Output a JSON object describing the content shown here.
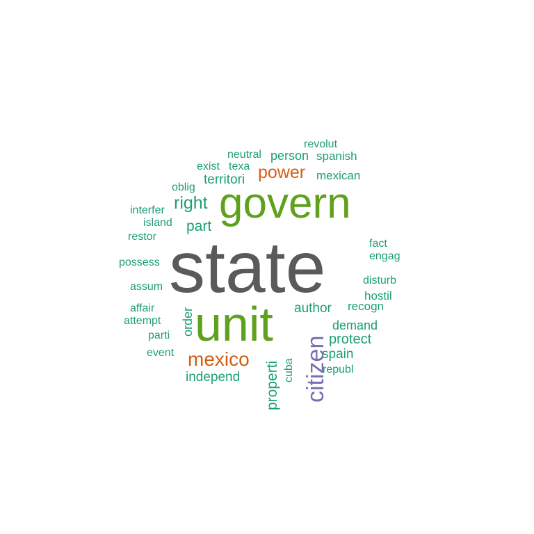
{
  "colors": {
    "gray": "#5a5a5a",
    "green": "#5fa01d",
    "orange": "#d25f11",
    "purple": "#7570b3",
    "teal": "#1b9e77"
  },
  "words": [
    {
      "key": "state",
      "text": "state",
      "color": "gray"
    },
    {
      "key": "unit",
      "text": "unit",
      "color": "green"
    },
    {
      "key": "govern",
      "text": "govern",
      "color": "green"
    },
    {
      "key": "citizen",
      "text": "citizen",
      "color": "purple"
    },
    {
      "key": "mexico",
      "text": "mexico",
      "color": "orange"
    },
    {
      "key": "power",
      "text": "power",
      "color": "orange"
    },
    {
      "key": "right",
      "text": "right",
      "color": "teal"
    },
    {
      "key": "part",
      "text": "part",
      "color": "teal"
    },
    {
      "key": "territori",
      "text": "territori",
      "color": "teal"
    },
    {
      "key": "author",
      "text": "author",
      "color": "teal"
    },
    {
      "key": "protect",
      "text": "protect",
      "color": "teal"
    },
    {
      "key": "demand",
      "text": "demand",
      "color": "teal"
    },
    {
      "key": "independ",
      "text": "independ",
      "color": "teal"
    },
    {
      "key": "properti",
      "text": "properti",
      "color": "teal"
    },
    {
      "key": "person",
      "text": "person",
      "color": "teal"
    },
    {
      "key": "spanish",
      "text": "spanish",
      "color": "teal"
    },
    {
      "key": "mexican",
      "text": "mexican",
      "color": "teal"
    },
    {
      "key": "spain",
      "text": "spain",
      "color": "teal"
    },
    {
      "key": "revolut",
      "text": "revolut",
      "color": "teal"
    },
    {
      "key": "neutral",
      "text": "neutral",
      "color": "teal"
    },
    {
      "key": "exist",
      "text": "exist",
      "color": "teal"
    },
    {
      "key": "texa",
      "text": "texa",
      "color": "teal"
    },
    {
      "key": "oblig",
      "text": "oblig",
      "color": "teal"
    },
    {
      "key": "interfer",
      "text": "interfer",
      "color": "teal"
    },
    {
      "key": "island",
      "text": "island",
      "color": "teal"
    },
    {
      "key": "restor",
      "text": "restor",
      "color": "teal"
    },
    {
      "key": "possess",
      "text": "possess",
      "color": "teal"
    },
    {
      "key": "assum",
      "text": "assum",
      "color": "teal"
    },
    {
      "key": "affair",
      "text": "affair",
      "color": "teal"
    },
    {
      "key": "attempt",
      "text": "attempt",
      "color": "teal"
    },
    {
      "key": "parti",
      "text": "parti",
      "color": "teal"
    },
    {
      "key": "event",
      "text": "event",
      "color": "teal"
    },
    {
      "key": "order",
      "text": "order",
      "color": "teal"
    },
    {
      "key": "fact",
      "text": "fact",
      "color": "teal"
    },
    {
      "key": "engag",
      "text": "engag",
      "color": "teal"
    },
    {
      "key": "disturb",
      "text": "disturb",
      "color": "teal"
    },
    {
      "key": "hostil",
      "text": "hostil",
      "color": "teal"
    },
    {
      "key": "recogn",
      "text": "recogn",
      "color": "teal"
    },
    {
      "key": "cuba",
      "text": "cuba",
      "color": "teal"
    },
    {
      "key": "republ",
      "text": "republ",
      "color": "teal"
    }
  ]
}
